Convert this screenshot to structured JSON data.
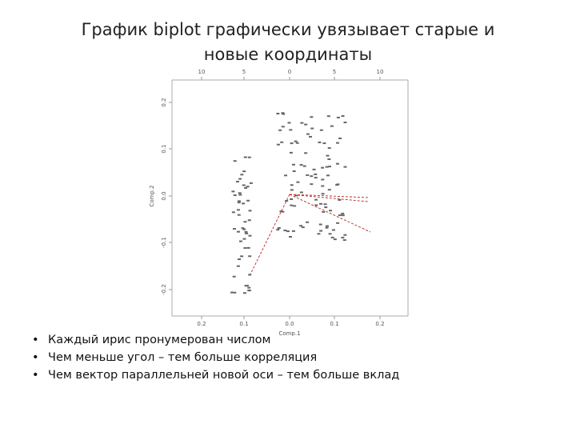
{
  "title": "График biplot графически увязывает старые и новые координаты",
  "figure": {
    "top_ticks": [
      "10",
      "5",
      "0",
      "5",
      "10"
    ],
    "bottom_ticks": [
      "0.2",
      "0.1",
      "0.0",
      "0.1",
      "0.2"
    ],
    "left_ticks": [
      "0.2",
      "0.1",
      "0.0",
      "-0.1",
      "-0.2"
    ],
    "x_label": "Comp.1",
    "y_label": "Comp.2"
  },
  "bullets": [
    "Каждый ирис пронумерован числом",
    "Чем меньше угол – тем больше корреляция",
    "Чем вектор параллельней новой оси – тем больше вклад"
  ]
}
